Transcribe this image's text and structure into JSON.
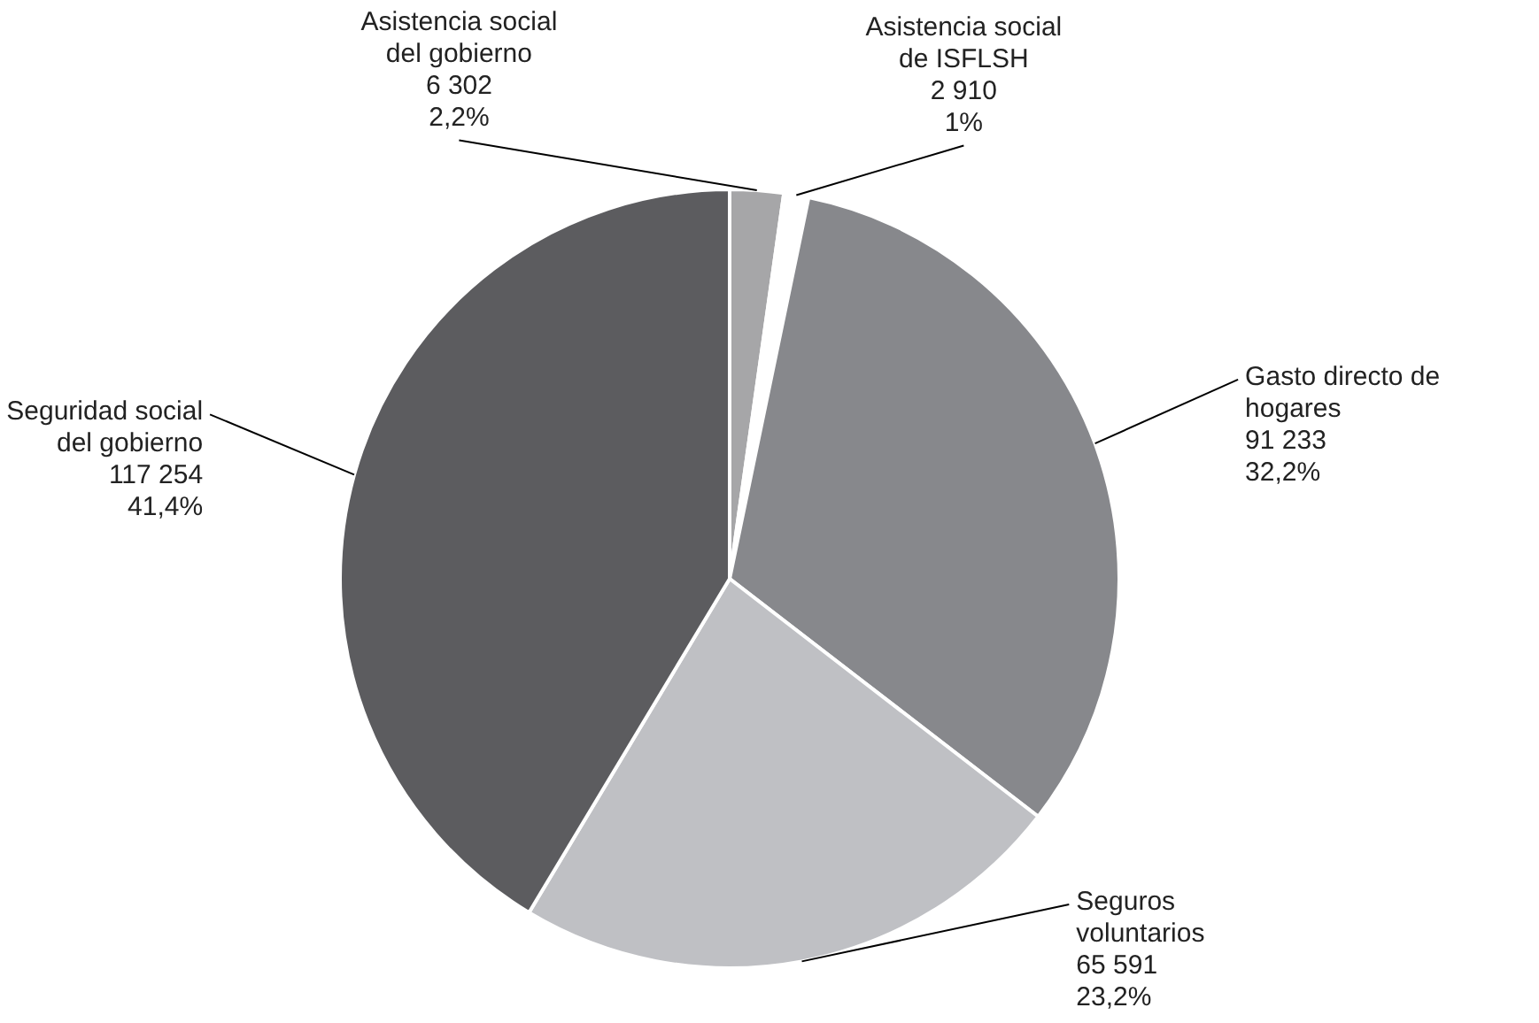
{
  "chart_data": {
    "type": "pie",
    "categories": [
      "Asistencia social del gobierno",
      "Asistencia social de ISFLSH",
      "Gasto directo de hogares",
      "Seguros voluntarios",
      "Seguridad social del gobierno"
    ],
    "values": [
      6302,
      2910,
      91233,
      65591,
      117254
    ],
    "colors": [
      "#a6a6a8",
      "#ffffff",
      "#87888c",
      "#bfc0c4",
      "#5c5c5f"
    ],
    "value_labels": [
      "6 302\n2,2%",
      "2 910\n1%",
      "91 233\n32,2%",
      "65 591\n23,2%",
      "117 254\n41,4%"
    ]
  }
}
